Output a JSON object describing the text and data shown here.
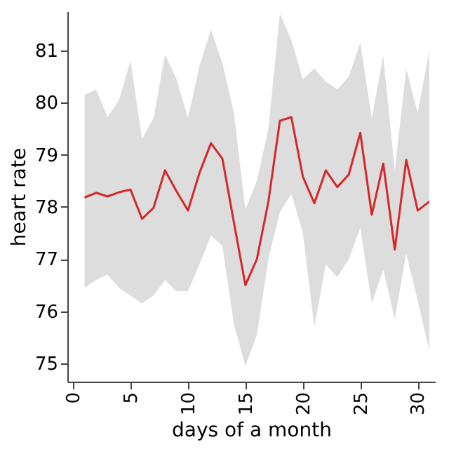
{
  "chart_data": {
    "type": "line",
    "xlabel": "days of a month",
    "ylabel": "heart rate",
    "x": [
      1,
      2,
      3,
      4,
      5,
      6,
      7,
      8,
      9,
      10,
      11,
      12,
      13,
      14,
      15,
      16,
      17,
      18,
      19,
      20,
      21,
      22,
      23,
      24,
      25,
      26,
      27,
      28,
      29,
      30,
      31
    ],
    "series": [
      {
        "color": "#d62728",
        "values": [
          78.18,
          78.27,
          78.2,
          78.28,
          78.33,
          77.77,
          77.98,
          78.7,
          78.3,
          77.93,
          78.65,
          79.22,
          78.92,
          77.7,
          76.5,
          77.0,
          78.1,
          79.65,
          79.72,
          78.58,
          78.07,
          78.7,
          78.38,
          78.62,
          79.42,
          77.85,
          78.83,
          77.18,
          78.9,
          77.93,
          78.1
        ],
        "lower": [
          76.45,
          76.6,
          76.7,
          76.45,
          76.3,
          76.15,
          76.3,
          76.6,
          76.38,
          76.38,
          76.9,
          77.45,
          77.25,
          75.75,
          74.95,
          75.55,
          77.0,
          77.9,
          78.25,
          77.5,
          75.7,
          76.9,
          76.65,
          77.0,
          77.6,
          76.15,
          76.8,
          75.85,
          77.1,
          76.2,
          75.25
        ],
        "upper": [
          80.15,
          80.25,
          79.72,
          80.05,
          80.8,
          79.3,
          79.7,
          80.92,
          80.45,
          79.7,
          80.7,
          81.4,
          80.75,
          79.8,
          77.95,
          78.5,
          79.5,
          81.7,
          81.2,
          80.45,
          80.65,
          80.4,
          80.25,
          80.5,
          81.15,
          79.7,
          80.9,
          78.7,
          80.65,
          79.8,
          81.0
        ]
      }
    ],
    "xlim": [
      -0.5,
      31.5
    ],
    "ylim": [
      74.65,
      81.75
    ],
    "xticks": [
      0,
      5,
      10,
      15,
      20,
      25,
      30
    ],
    "yticks": [
      75,
      76,
      77,
      78,
      79,
      80,
      81
    ],
    "grid": false,
    "line_style": "solid",
    "marker": "none"
  }
}
